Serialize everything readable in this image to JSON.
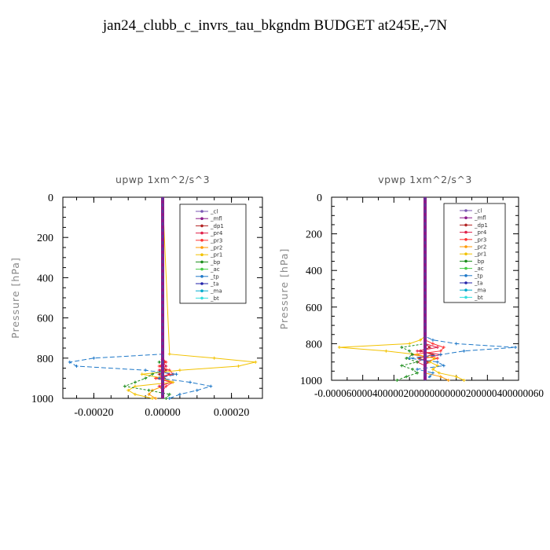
{
  "title": "jan24_clubb_c_invrs_tau_bkgndm  BUDGET at245E,-7N",
  "chart_data": [
    {
      "type": "line",
      "title": "upwp   1xm^2/s^3",
      "ylabel": "Pressure [hPa]",
      "ylim": [
        1000,
        0
      ],
      "xlim": [
        -0.00029,
        0.00029
      ],
      "y_ticks": [
        0,
        200,
        400,
        600,
        800,
        1000
      ],
      "y_tick_labels": [
        "0",
        "200",
        "400",
        "600",
        "800",
        "1000"
      ],
      "x_ticks": [
        -0.0002,
        0.0,
        0.0002
      ],
      "x_tick_labels": [
        "-0.00020",
        "0.00000",
        "0.00020"
      ],
      "legend_position": "top-right",
      "y": [
        780,
        800,
        820,
        840,
        860,
        880,
        900,
        920,
        940,
        960,
        980,
        1000
      ],
      "series": [
        {
          "name": "_cl",
          "color": "#7a56b3",
          "values": [
            0,
            0,
            0,
            0,
            0,
            0,
            0,
            0,
            0,
            0,
            0,
            0
          ]
        },
        {
          "name": "_mfl",
          "color": "#8b1a8b",
          "values": [
            0,
            0,
            0,
            0,
            0,
            0,
            0,
            0,
            0,
            0,
            0,
            0
          ]
        },
        {
          "name": "_dp1",
          "color": "#b22222",
          "values": [
            0,
            0,
            5e-06,
            -5e-06,
            1e-05,
            -1e-05,
            5e-06,
            0,
            0,
            0,
            0,
            0
          ]
        },
        {
          "name": "_pr4",
          "color": "#e0204a",
          "values": [
            0,
            0,
            0,
            1e-05,
            -1e-05,
            2e-05,
            -2e-05,
            2.5e-05,
            -1e-05,
            0,
            0,
            0
          ]
        },
        {
          "name": "_pr3",
          "color": "#ff3333",
          "values": [
            0,
            0,
            1e-05,
            -1e-05,
            2e-05,
            3e-05,
            -2e-05,
            3e-05,
            1e-05,
            0,
            0,
            0
          ]
        },
        {
          "name": "_pr2",
          "color": "#ff9900",
          "values": [
            0,
            0,
            0,
            0,
            0,
            0,
            0,
            0,
            0,
            -3e-05,
            -4e-05,
            -2e-05
          ]
        },
        {
          "name": "_pr1",
          "color": "#f2c200",
          "values": [
            2e-05,
            0.00015,
            0.00027,
            0.00022,
            5e-05,
            -6e-05,
            0,
            3e-05,
            -8e-05,
            -0.0001,
            -8e-05,
            -3e-05
          ]
        },
        {
          "name": "_bp",
          "color": "#1a8c1a",
          "values": [
            0,
            0,
            -1e-05,
            0,
            0,
            -3e-05,
            -5e-05,
            -8e-05,
            -0.00011,
            -4e-05,
            2e-05,
            1e-05
          ]
        },
        {
          "name": "_ac",
          "color": "#44cc44",
          "values": [
            0,
            0,
            0,
            0,
            0,
            0,
            0,
            0,
            0,
            0,
            0,
            0
          ]
        },
        {
          "name": "_tp",
          "color": "#1e78c8",
          "values": [
            0,
            -0.0002,
            -0.00027,
            -0.00025,
            -5e-05,
            4e-05,
            -1e-05,
            8e-05,
            0.00014,
            0.0001,
            5e-05,
            2e-05
          ]
        },
        {
          "name": "_ta",
          "color": "#2222aa",
          "values": [
            0,
            0,
            0,
            0,
            0,
            0,
            0,
            0,
            0,
            0,
            0,
            0
          ]
        },
        {
          "name": "_ma",
          "color": "#00aacc",
          "values": [
            0,
            0,
            0,
            0,
            0,
            0,
            0,
            0,
            0,
            0,
            0,
            0
          ]
        },
        {
          "name": "_bt",
          "color": "#33dddd",
          "values": [
            0,
            0,
            0,
            0,
            0,
            0,
            0,
            0,
            0,
            0,
            0,
            0
          ]
        }
      ]
    },
    {
      "type": "line",
      "title": "vpwp   1xm^2/s^3",
      "ylabel": "Pressure [hPa]",
      "ylim": [
        1000,
        0
      ],
      "xlim": [
        -6e-05,
        6e-05
      ],
      "y_ticks": [
        0,
        200,
        400,
        600,
        800,
        1000
      ],
      "y_tick_labels": [
        "0",
        "200",
        "400",
        "600",
        "800",
        "1000"
      ],
      "x_tick_label_string": "-0.000060000400000200000000000200000400000060",
      "legend_position": "top-right",
      "y": [
        760,
        780,
        800,
        820,
        840,
        860,
        880,
        900,
        920,
        940,
        960,
        980,
        1000
      ],
      "series": [
        {
          "name": "_cl",
          "color": "#7a56b3",
          "values": [
            0,
            0,
            0,
            0,
            0,
            0,
            0,
            0,
            0,
            0,
            0,
            0,
            0
          ]
        },
        {
          "name": "_mfl",
          "color": "#8b1a8b",
          "values": [
            0,
            0,
            0,
            0,
            0,
            0,
            0,
            0,
            0,
            0,
            0,
            0,
            0
          ]
        },
        {
          "name": "_dp1",
          "color": "#b22222",
          "values": [
            0,
            0,
            0,
            3e-06,
            -3e-06,
            5e-06,
            -4e-06,
            2e-06,
            0,
            0,
            0,
            0,
            0
          ]
        },
        {
          "name": "_pr4",
          "color": "#e0204a",
          "values": [
            0,
            0,
            0,
            8e-06,
            -5e-06,
            1e-05,
            0,
            -5e-06,
            0,
            0,
            0,
            0,
            0
          ]
        },
        {
          "name": "_pr3",
          "color": "#ff3333",
          "values": [
            0,
            0,
            5e-06,
            1.2e-05,
            1e-05,
            -8e-06,
            8e-06,
            0,
            0,
            0,
            0,
            0,
            0
          ]
        },
        {
          "name": "_pr2",
          "color": "#ff9900",
          "values": [
            0,
            0,
            0,
            0,
            0,
            0,
            0,
            0,
            0,
            0,
            0,
            1e-05,
            1.5e-05
          ]
        },
        {
          "name": "_pr1",
          "color": "#f2c200",
          "values": [
            0,
            -3e-06,
            -1e-05,
            -5.5e-05,
            -2.5e-05,
            -5e-06,
            6e-06,
            3e-06,
            8e-06,
            5e-06,
            9e-06,
            2e-05,
            2.5e-05
          ]
        },
        {
          "name": "_bp",
          "color": "#1a8c1a",
          "values": [
            0,
            0,
            0,
            -1.5e-05,
            -1e-05,
            -8e-06,
            -1.2e-05,
            -5e-06,
            -1.5e-05,
            -8e-06,
            -5e-06,
            -1.2e-05,
            -1.8e-05
          ]
        },
        {
          "name": "_ac",
          "color": "#44cc44",
          "values": [
            0,
            0,
            0,
            0,
            0,
            0,
            0,
            0,
            0,
            0,
            0,
            0,
            0
          ]
        },
        {
          "name": "_tp",
          "color": "#1e78c8",
          "values": [
            0,
            5e-06,
            2e-05,
            5.8e-05,
            2.5e-05,
            1e-05,
            -1e-05,
            8e-06,
            1.2e-05,
            -5e-06,
            5e-06,
            3e-06,
            0
          ]
        },
        {
          "name": "_ta",
          "color": "#2222aa",
          "values": [
            0,
            0,
            0,
            0,
            0,
            0,
            0,
            0,
            0,
            0,
            0,
            0,
            0
          ]
        },
        {
          "name": "_ma",
          "color": "#00aacc",
          "values": [
            0,
            0,
            0,
            0,
            0,
            0,
            0,
            0,
            0,
            0,
            0,
            0,
            0
          ]
        },
        {
          "name": "_bt",
          "color": "#33dddd",
          "values": [
            0,
            0,
            0,
            0,
            0,
            0,
            0,
            0,
            0,
            0,
            0,
            0,
            0
          ]
        }
      ]
    }
  ]
}
